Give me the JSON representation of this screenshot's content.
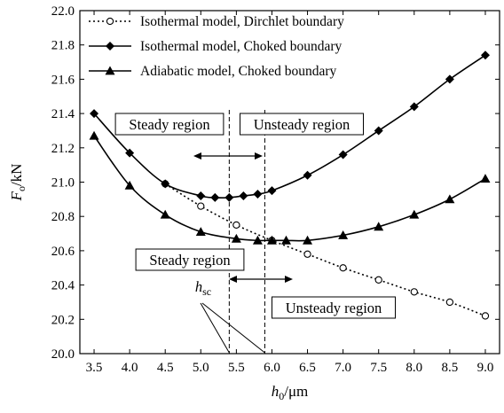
{
  "chart_data": {
    "type": "line",
    "xlabel": {
      "base": "h",
      "sub": "0",
      "unit": "/μm"
    },
    "ylabel": {
      "base": "F",
      "sub": "o",
      "unit": "/kN"
    },
    "xlim": [
      3.3,
      9.2
    ],
    "ylim": [
      20.0,
      22.0
    ],
    "xticks": [
      3.5,
      4.0,
      4.5,
      5.0,
      5.5,
      6.0,
      6.5,
      7.0,
      7.5,
      8.0,
      8.5,
      9.0
    ],
    "xtick_labels": [
      "3.5",
      "4.0",
      "4.5",
      "5.0",
      "5.5",
      "6.0",
      "6.5",
      "7.0",
      "7.5",
      "8.0",
      "8.5",
      "9.0"
    ],
    "yticks": [
      20.0,
      20.2,
      20.4,
      20.6,
      20.8,
      21.0,
      21.2,
      21.4,
      21.6,
      21.8,
      22.0
    ],
    "ytick_labels": [
      "20.0",
      "20.2",
      "20.4",
      "20.6",
      "20.8",
      "21.0",
      "21.2",
      "21.4",
      "21.6",
      "21.8",
      "22.0"
    ],
    "grid": false,
    "legend_position": "top",
    "series": [
      {
        "name": "Isothermal model, Dirchlet boundary",
        "marker": "open-circle",
        "line": "dotted",
        "x": [
          4.5,
          5.0,
          5.5,
          6.0,
          6.5,
          7.0,
          7.5,
          8.0,
          8.5,
          9.0
        ],
        "y": [
          20.99,
          20.86,
          20.75,
          20.66,
          20.58,
          20.5,
          20.43,
          20.36,
          20.3,
          20.22
        ]
      },
      {
        "name": "Isothermal model, Choked boundary",
        "marker": "filled-diamond",
        "line": "solid",
        "x": [
          3.5,
          4.0,
          4.5,
          5.0,
          5.2,
          5.4,
          5.6,
          5.8,
          6.0,
          6.5,
          7.0,
          7.5,
          8.0,
          8.5,
          9.0
        ],
        "y": [
          21.4,
          21.17,
          20.99,
          20.92,
          20.91,
          20.91,
          20.92,
          20.93,
          20.95,
          21.04,
          21.16,
          21.3,
          21.44,
          21.6,
          21.74
        ]
      },
      {
        "name": "Adiabatic model, Choked boundary",
        "marker": "filled-triangle",
        "line": "solid",
        "x": [
          3.5,
          4.0,
          4.5,
          5.0,
          5.5,
          5.8,
          6.0,
          6.2,
          6.5,
          7.0,
          7.5,
          8.0,
          8.5,
          9.0
        ],
        "y": [
          21.27,
          20.98,
          20.81,
          20.71,
          20.67,
          20.66,
          20.66,
          20.66,
          20.66,
          20.69,
          20.74,
          20.81,
          20.9,
          21.02
        ]
      }
    ],
    "annotations": {
      "steady_region_upper": "Steady region",
      "unsteady_region_upper": "Unsteady region",
      "steady_region_lower": "Steady region",
      "unsteady_region_lower": "Unsteady region",
      "hsc_label": {
        "base": "h",
        "sub": "sc"
      },
      "dashed_lines_x": [
        5.4,
        5.9
      ]
    }
  }
}
